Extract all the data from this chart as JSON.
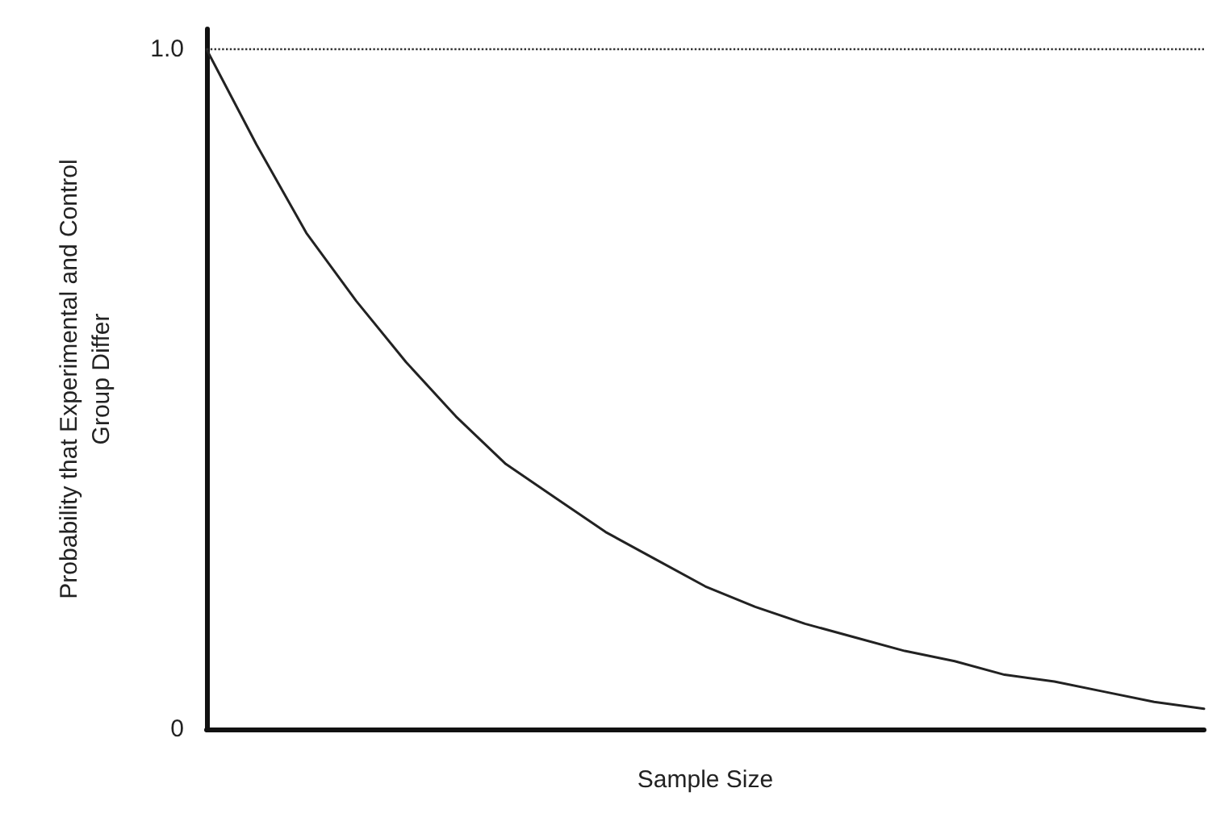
{
  "chart_data": {
    "type": "line",
    "xlabel": "Sample Size",
    "ylabel": "Probability that Experimental and Control Group Differ",
    "categories": [
      null,
      null,
      null,
      null,
      null,
      null,
      null,
      null,
      null,
      null,
      null,
      null,
      null,
      null,
      null,
      null,
      null,
      null,
      null,
      null,
      null
    ],
    "series": [
      {
        "color": "#222222",
        "values": [
          1.0,
          0.86,
          0.73,
          0.63,
          0.54,
          0.46,
          0.39,
          0.34,
          0.29,
          0.25,
          0.21,
          0.18,
          0.155,
          0.135,
          0.115,
          0.1,
          0.08,
          0.07,
          0.055,
          0.04,
          0.03
        ]
      }
    ],
    "ylim": [
      0,
      1.03
    ],
    "yticks": [
      0,
      {
        "value": 1,
        "label": "1.0"
      }
    ],
    "ref_lines": [
      {
        "axis": "y",
        "value": 1,
        "color": "#333333",
        "line_style": "dotted"
      }
    ],
    "grid": false,
    "marker": "none",
    "line_style": "solid",
    "tick_labels": "y"
  }
}
